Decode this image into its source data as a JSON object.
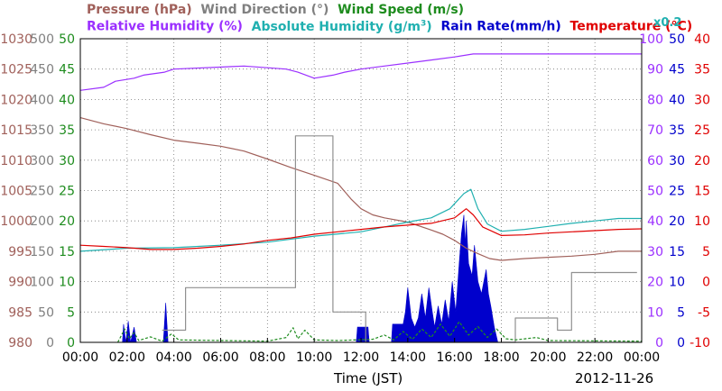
{
  "chart_data": {
    "type": "line",
    "date": "2012-11-26",
    "xlabel": "Time (JST)",
    "x_ticks": [
      "00:00",
      "02:00",
      "04:00",
      "06:00",
      "08:00",
      "10:00",
      "12:00",
      "14:00",
      "16:00",
      "18:00",
      "20:00",
      "22:00",
      "00:00"
    ],
    "xlim_hours": [
      0,
      24
    ],
    "grid": true,
    "legend": {
      "row1": [
        {
          "text": "Pressure (hPa)",
          "color": "#a0605a"
        },
        {
          "text": "Wind Direction (°)",
          "color": "#808080"
        },
        {
          "text": "Wind Speed (m/s)",
          "color": "#1e8c1e"
        }
      ],
      "row2": [
        {
          "text": "Relative Humidity (%)",
          "color": "#9b30ff"
        },
        {
          "text": "Absolute Humidity (g/m",
          "sup": "3",
          "after": ")",
          "color": "#20b0b0"
        },
        {
          "text": "Rain Rate(mm/h)",
          "color": "#0000cc"
        },
        {
          "text": "Temperature (°C)",
          "color": "#e00000"
        }
      ],
      "ah_scale": {
        "text": "x0.2",
        "color": "#20b0b0"
      }
    },
    "axes": [
      {
        "name": "Pressure (hPa)",
        "side": "left",
        "range": [
          980,
          1030
        ],
        "ticks": [
          "980",
          "985",
          "990",
          "995",
          "1000",
          "1005",
          "1010",
          "1015",
          "1020",
          "1025",
          "1030"
        ],
        "color": "#a0605a"
      },
      {
        "name": "Wind Direction (°)",
        "side": "left",
        "range": [
          0,
          500
        ],
        "ticks": [
          "0",
          "50",
          "100",
          "150",
          "200",
          "250",
          "300",
          "350",
          "400",
          "450",
          "500"
        ],
        "color": "#808080"
      },
      {
        "name": "Wind Speed (m/s)",
        "side": "left",
        "range": [
          0,
          50
        ],
        "ticks": [
          "0",
          "5",
          "10",
          "15",
          "20",
          "25",
          "30",
          "35",
          "40",
          "45",
          "50"
        ],
        "color": "#1e8c1e"
      },
      {
        "name": "Relative Humidity (%)",
        "side": "right",
        "range": [
          0,
          100
        ],
        "ticks": [
          "0",
          "10",
          "20",
          "30",
          "40",
          "50",
          "60",
          "70",
          "80",
          "90",
          "100"
        ],
        "color": "#9b30ff"
      },
      {
        "name": "Rain Rate (mm/h)",
        "side": "right",
        "range": [
          0,
          50
        ],
        "ticks": [
          "0",
          "5",
          "10",
          "15",
          "20",
          "25",
          "30",
          "35",
          "40",
          "45",
          "50"
        ],
        "color": "#0000cc"
      },
      {
        "name": "Temperature (°C)",
        "side": "right",
        "range": [
          -10,
          40
        ],
        "ticks": [
          "-10",
          "-5",
          "0",
          "5",
          "10",
          "15",
          "20",
          "25",
          "30",
          "35",
          "40"
        ],
        "color": "#e00000"
      }
    ],
    "series": [
      {
        "name": "Pressure (hPa)",
        "axis": 0,
        "color": "#a0605a",
        "style": "line",
        "points": [
          [
            0,
            1017
          ],
          [
            1,
            1016
          ],
          [
            2,
            1015.2
          ],
          [
            3,
            1014.2
          ],
          [
            4,
            1013.3
          ],
          [
            5,
            1012.8
          ],
          [
            6,
            1012.3
          ],
          [
            7,
            1011.5
          ],
          [
            8,
            1010.2
          ],
          [
            9,
            1008.8
          ],
          [
            10,
            1007.5
          ],
          [
            11,
            1006.2
          ],
          [
            11.6,
            1003.5
          ],
          [
            12,
            1002
          ],
          [
            12.5,
            1001
          ],
          [
            13,
            1000.5
          ],
          [
            14,
            999.8
          ],
          [
            15,
            998.5
          ],
          [
            15.5,
            997.8
          ],
          [
            16,
            996.8
          ],
          [
            16.5,
            995.5
          ],
          [
            17,
            994.6
          ],
          [
            17.5,
            993.8
          ],
          [
            18,
            993.5
          ],
          [
            19,
            993.8
          ],
          [
            20,
            994
          ],
          [
            21,
            994.2
          ],
          [
            22,
            994.5
          ],
          [
            23,
            995
          ],
          [
            24,
            995
          ]
        ]
      },
      {
        "name": "Wind Direction (°)",
        "axis": 1,
        "color": "#909090",
        "style": "line",
        "points": [
          [
            3.5,
            20
          ],
          [
            4.5,
            20
          ],
          [
            4.5,
            90
          ],
          [
            9.2,
            90
          ],
          [
            9.2,
            340
          ],
          [
            10.8,
            340
          ],
          [
            10.8,
            50
          ],
          [
            12.2,
            50
          ],
          [
            12.2,
            0
          ],
          [
            18.6,
            0
          ],
          [
            18.6,
            40
          ],
          [
            20.4,
            40
          ],
          [
            20.4,
            20
          ],
          [
            21,
            20
          ],
          [
            21,
            115
          ],
          [
            23.8,
            115
          ]
        ]
      },
      {
        "name": "Wind Speed (m/s)",
        "axis": 2,
        "color": "#1e8c1e",
        "style": "dashed",
        "points": [
          [
            1.6,
            0
          ],
          [
            1.9,
            2.2
          ],
          [
            2.1,
            0.6
          ],
          [
            2.3,
            1.6
          ],
          [
            2.5,
            0.3
          ],
          [
            3,
            0.9
          ],
          [
            3.5,
            0.2
          ],
          [
            3.9,
            1.4
          ],
          [
            4.2,
            0.4
          ],
          [
            8,
            0.2
          ],
          [
            8.8,
            0.8
          ],
          [
            9.1,
            2.4
          ],
          [
            9.3,
            0.6
          ],
          [
            9.6,
            2
          ],
          [
            10,
            0.4
          ],
          [
            11,
            0.3
          ],
          [
            12.5,
            0.5
          ],
          [
            13,
            1.2
          ],
          [
            13.4,
            0.4
          ],
          [
            13.8,
            1.8
          ],
          [
            14.2,
            0.5
          ],
          [
            14.6,
            2.2
          ],
          [
            15,
            0.8
          ],
          [
            15.4,
            3
          ],
          [
            15.8,
            1
          ],
          [
            16.2,
            3.4
          ],
          [
            16.6,
            1.2
          ],
          [
            17,
            2.6
          ],
          [
            17.4,
            0.8
          ],
          [
            17.8,
            2.2
          ],
          [
            18.2,
            0.6
          ],
          [
            18.6,
            0.4
          ],
          [
            19.5,
            0.8
          ],
          [
            20,
            0.3
          ],
          [
            24,
            0.2
          ]
        ]
      },
      {
        "name": "Relative Humidity (%)",
        "axis": 3,
        "color": "#9b30ff",
        "style": "line",
        "points": [
          [
            0,
            83
          ],
          [
            1,
            84
          ],
          [
            1.5,
            86
          ],
          [
            2.3,
            87
          ],
          [
            2.7,
            88
          ],
          [
            3.6,
            89
          ],
          [
            4,
            90
          ],
          [
            7,
            91
          ],
          [
            8.8,
            90
          ],
          [
            9.3,
            89
          ],
          [
            10,
            87
          ],
          [
            10.8,
            88
          ],
          [
            11.3,
            89
          ],
          [
            12,
            90
          ],
          [
            13,
            91
          ],
          [
            14,
            92
          ],
          [
            15,
            93
          ],
          [
            16,
            94
          ],
          [
            16.8,
            95
          ],
          [
            17.5,
            95
          ],
          [
            24,
            95
          ]
        ]
      },
      {
        "name": "Absolute Humidity (g/m3)",
        "axis": 4,
        "color": "#20b0b0",
        "style": "line",
        "points": [
          [
            0,
            15
          ],
          [
            2,
            15.5
          ],
          [
            4,
            15.6
          ],
          [
            6,
            16
          ],
          [
            8,
            16.5
          ],
          [
            10,
            17.5
          ],
          [
            12,
            18.2
          ],
          [
            13,
            19
          ],
          [
            14,
            19.8
          ],
          [
            15,
            20.5
          ],
          [
            15.8,
            22
          ],
          [
            16.4,
            24.5
          ],
          [
            16.7,
            25.2
          ],
          [
            17,
            22
          ],
          [
            17.4,
            19.5
          ],
          [
            18,
            18.3
          ],
          [
            19,
            18.6
          ],
          [
            20,
            19.1
          ],
          [
            21,
            19.6
          ],
          [
            22,
            20
          ],
          [
            23,
            20.4
          ],
          [
            24,
            20.4
          ]
        ]
      },
      {
        "name": "Temperature (°C)",
        "axis": 5,
        "color": "#e00000",
        "style": "line",
        "points": [
          [
            0,
            6
          ],
          [
            1,
            5.8
          ],
          [
            2,
            5.6
          ],
          [
            3,
            5.3
          ],
          [
            4,
            5.3
          ],
          [
            5,
            5.5
          ],
          [
            6,
            5.8
          ],
          [
            7,
            6.2
          ],
          [
            8,
            6.8
          ],
          [
            9,
            7.2
          ],
          [
            10,
            7.8
          ],
          [
            11,
            8.2
          ],
          [
            12,
            8.6
          ],
          [
            13,
            9
          ],
          [
            14,
            9.3
          ],
          [
            15,
            9.6
          ],
          [
            16,
            10.5
          ],
          [
            16.5,
            12
          ],
          [
            16.8,
            11
          ],
          [
            17.2,
            9
          ],
          [
            18,
            7.6
          ],
          [
            19,
            7.7
          ],
          [
            20,
            8
          ],
          [
            21,
            8.2
          ],
          [
            22,
            8.4
          ],
          [
            23,
            8.6
          ],
          [
            24,
            8.7
          ]
        ]
      }
    ],
    "rain_rate": {
      "name": "Rain Rate(mm/h)",
      "axis": 4,
      "color": "#0000cc",
      "style": "area",
      "points": [
        [
          1.8,
          0
        ],
        [
          1.85,
          3
        ],
        [
          1.95,
          0
        ],
        [
          2.05,
          3.5
        ],
        [
          2.15,
          0
        ],
        [
          2.3,
          2.5
        ],
        [
          2.4,
          0
        ],
        [
          3.55,
          0
        ],
        [
          3.65,
          6.5
        ],
        [
          3.75,
          0
        ],
        [
          11.8,
          0
        ],
        [
          11.85,
          2.5
        ],
        [
          12.3,
          2.5
        ],
        [
          12.35,
          0
        ],
        [
          13.3,
          0
        ],
        [
          13.35,
          3
        ],
        [
          13.8,
          3
        ],
        [
          13.9,
          5
        ],
        [
          14,
          9
        ],
        [
          14.15,
          4
        ],
        [
          14.3,
          2.5
        ],
        [
          14.45,
          4
        ],
        [
          14.6,
          8
        ],
        [
          14.75,
          4
        ],
        [
          14.9,
          9
        ],
        [
          15.05,
          5
        ],
        [
          15.15,
          2.5
        ],
        [
          15.3,
          6
        ],
        [
          15.45,
          3
        ],
        [
          15.6,
          7
        ],
        [
          15.75,
          3.5
        ],
        [
          15.9,
          10
        ],
        [
          16.05,
          5
        ],
        [
          16.2,
          13
        ],
        [
          16.3,
          18
        ],
        [
          16.4,
          21
        ],
        [
          16.45,
          16
        ],
        [
          16.5,
          20
        ],
        [
          16.6,
          13
        ],
        [
          16.75,
          11
        ],
        [
          16.85,
          16
        ],
        [
          17,
          10
        ],
        [
          17.15,
          8
        ],
        [
          17.35,
          12
        ],
        [
          17.45,
          8
        ],
        [
          17.55,
          6
        ],
        [
          17.7,
          2.5
        ],
        [
          17.85,
          0
        ]
      ]
    }
  },
  "footer": {
    "xlabel": "Time (JST)",
    "date": "2012-11-26"
  }
}
